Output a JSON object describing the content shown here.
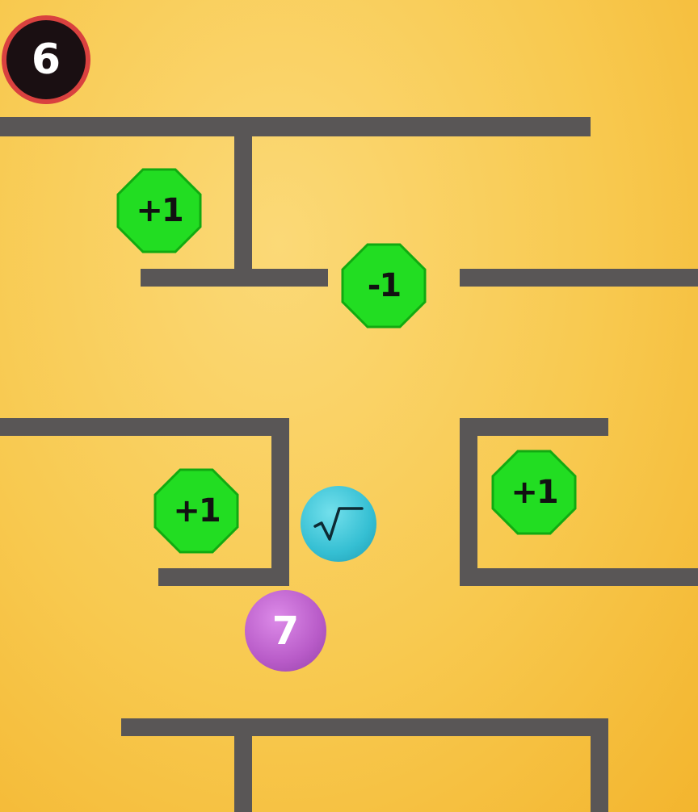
{
  "hud": {
    "score": "6"
  },
  "tokens": [
    {
      "label": "+1"
    },
    {
      "label": "-1"
    },
    {
      "label": "+1"
    },
    {
      "label": "+1"
    }
  ],
  "balls": {
    "operator_icon": "square-root-icon",
    "player_value": "7"
  },
  "colors": {
    "background": "#f8c94f",
    "walls": "#595656",
    "token_fill": "#22dd22",
    "token_border": "#11aa11",
    "score_ring": "#d9413f",
    "operator_ball": "#35bfd3",
    "player_ball": "#b85bc8"
  }
}
